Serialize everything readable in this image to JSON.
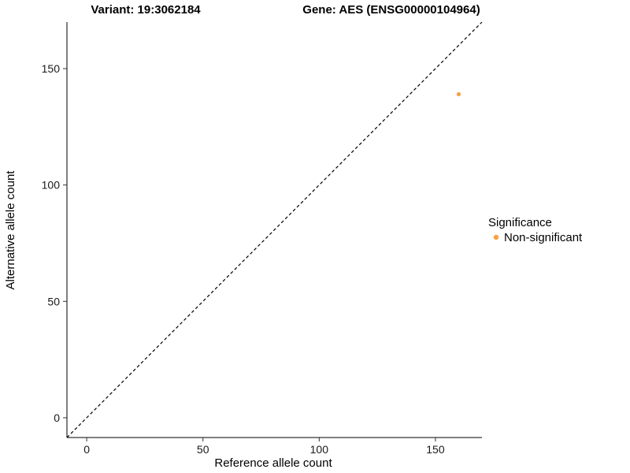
{
  "chart_data": {
    "type": "scatter",
    "title_left": "Variant: 19:3062184",
    "title_right": "Gene: AES (ENSG00000104964)",
    "xlabel": "Reference allele count",
    "ylabel": "Alternative allele count",
    "xlim": [
      -8.5,
      170
    ],
    "ylim": [
      -8.5,
      170
    ],
    "xticks": [
      0,
      50,
      100,
      150
    ],
    "yticks": [
      0,
      50,
      100,
      150
    ],
    "grid": false,
    "identity_line": {
      "style": "dashed",
      "slope": 1,
      "intercept": 0
    },
    "points": [
      {
        "x": 160,
        "y": 139,
        "series": "Non-significant"
      }
    ],
    "legend": {
      "title": "Significance",
      "position": "right",
      "entries": [
        {
          "label": "Non-significant",
          "color": "#F9A242"
        }
      ]
    }
  },
  "colors": {
    "point": "#F9A242",
    "axis": "#000000",
    "tick": "#333333",
    "background": "#ffffff"
  }
}
